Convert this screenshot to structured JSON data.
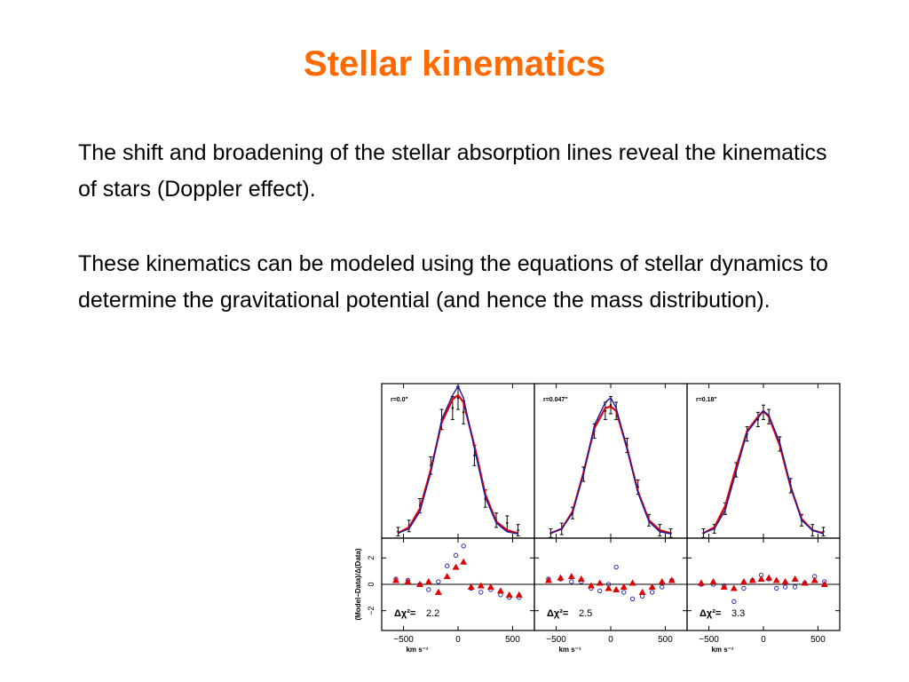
{
  "slide": {
    "title": "Stellar kinematics",
    "title_color": "#ff6a00",
    "paragraphs": [
      "The shift and broadening of the stellar absorption lines reveal the kinematics of stars (Doppler effect).",
      "These kinematics can be modeled using the equations of stellar dynamics to determine the gravitational potential (and hence the mass distribution)."
    ]
  },
  "chart_data": {
    "type": "line",
    "x_ticks": [
      -500,
      0,
      500
    ],
    "x_tick_labels": [
      "−500",
      "0",
      "500"
    ],
    "xlabel": "km s⁻¹",
    "xlim": [
      -700,
      700
    ],
    "residual_ylabel": "(Model−Data)/Δ(Data)",
    "residual_yticks": [
      -2,
      0,
      2
    ],
    "residual_ytick_labels": [
      "−2",
      "0",
      "2"
    ],
    "residual_ylim": [
      -3.5,
      3.5
    ],
    "line_colors": {
      "model_red": "#e00000",
      "model_blue": "#1a1aa8",
      "data": "#000000"
    },
    "panels": [
      {
        "label": "r=0.0\"",
        "chi2_label": "Δχ²=",
        "chi2_value": "2.2",
        "x": [
          -550,
          -450,
          -350,
          -250,
          -150,
          -50,
          0,
          50,
          150,
          250,
          350,
          450,
          550
        ],
        "data": [
          0.02,
          0.06,
          0.2,
          0.48,
          0.8,
          0.88,
          0.95,
          0.85,
          0.55,
          0.25,
          0.1,
          0.08,
          0.03
        ],
        "data_err": [
          0.03,
          0.04,
          0.05,
          0.06,
          0.07,
          0.08,
          0.08,
          0.08,
          0.07,
          0.06,
          0.05,
          0.05,
          0.04
        ],
        "model_red": [
          0.01,
          0.05,
          0.18,
          0.45,
          0.78,
          0.94,
          0.97,
          0.92,
          0.62,
          0.28,
          0.09,
          0.03,
          0.01
        ],
        "model_blue": [
          0.01,
          0.04,
          0.16,
          0.43,
          0.8,
          0.97,
          1.03,
          0.95,
          0.6,
          0.26,
          0.08,
          0.02,
          0.005
        ],
        "res_x": [
          -570,
          -460,
          -350,
          -270,
          -180,
          -100,
          -20,
          50,
          120,
          210,
          300,
          390,
          470,
          560
        ],
        "res_red": [
          0.3,
          0.2,
          0.0,
          0.2,
          -0.6,
          0.6,
          1.3,
          1.7,
          -0.2,
          -0.1,
          -0.2,
          -0.5,
          -0.8,
          -0.8
        ],
        "res_blue": [
          0.4,
          0.3,
          0.0,
          -0.4,
          0.2,
          1.4,
          2.2,
          2.9,
          -0.3,
          -0.6,
          -0.4,
          -0.8,
          -1.0,
          -1.0
        ]
      },
      {
        "label": "r=0.047\"",
        "chi2_label": "Δχ²=",
        "chi2_value": "2.5",
        "x": [
          -550,
          -450,
          -350,
          -250,
          -150,
          -50,
          0,
          50,
          150,
          250,
          350,
          450,
          550
        ],
        "data": [
          0.01,
          0.04,
          0.15,
          0.42,
          0.72,
          0.86,
          0.9,
          0.86,
          0.62,
          0.33,
          0.1,
          0.03,
          0.01
        ],
        "data_err": [
          0.03,
          0.04,
          0.04,
          0.05,
          0.05,
          0.06,
          0.06,
          0.06,
          0.05,
          0.05,
          0.04,
          0.04,
          0.03
        ],
        "model_red": [
          0.01,
          0.04,
          0.16,
          0.43,
          0.74,
          0.88,
          0.89,
          0.86,
          0.6,
          0.3,
          0.1,
          0.03,
          0.01
        ],
        "model_blue": [
          0.01,
          0.04,
          0.15,
          0.42,
          0.76,
          0.92,
          0.95,
          0.88,
          0.6,
          0.29,
          0.09,
          0.02,
          0.005
        ],
        "res_x": [
          -570,
          -460,
          -360,
          -270,
          -180,
          -100,
          -20,
          50,
          120,
          200,
          290,
          380,
          470,
          560
        ],
        "res_red": [
          0.3,
          0.5,
          0.6,
          0.4,
          -0.1,
          0.1,
          -0.3,
          -0.4,
          -0.2,
          0.1,
          -0.6,
          -0.2,
          0.2,
          0.3
        ],
        "res_blue": [
          0.4,
          0.4,
          0.2,
          0.2,
          -0.3,
          -0.5,
          0.0,
          1.3,
          -0.6,
          -1.1,
          -0.9,
          -0.6,
          -0.2,
          0.3
        ]
      },
      {
        "label": "r=0.18\"",
        "chi2_label": "Δχ²=",
        "chi2_value": "3.3",
        "x": [
          -550,
          -450,
          -350,
          -250,
          -150,
          -50,
          0,
          50,
          150,
          250,
          350,
          450,
          550
        ],
        "data": [
          0.01,
          0.04,
          0.18,
          0.45,
          0.7,
          0.8,
          0.85,
          0.82,
          0.63,
          0.34,
          0.1,
          0.03,
          0.02
        ],
        "data_err": [
          0.03,
          0.03,
          0.04,
          0.05,
          0.05,
          0.05,
          0.05,
          0.05,
          0.05,
          0.05,
          0.04,
          0.04,
          0.03
        ],
        "model_red": [
          0.01,
          0.05,
          0.2,
          0.47,
          0.72,
          0.82,
          0.86,
          0.82,
          0.62,
          0.33,
          0.11,
          0.03,
          0.01
        ],
        "model_blue": [
          0.01,
          0.04,
          0.17,
          0.44,
          0.71,
          0.81,
          0.86,
          0.83,
          0.64,
          0.34,
          0.1,
          0.03,
          0.005
        ],
        "res_x": [
          -570,
          -460,
          -360,
          -270,
          -180,
          -100,
          -20,
          50,
          120,
          200,
          290,
          380,
          470,
          560
        ],
        "res_red": [
          0.1,
          0.2,
          -0.2,
          -0.3,
          0.2,
          0.3,
          0.4,
          0.5,
          0.3,
          0.2,
          0.4,
          0.1,
          0.3,
          0.0
        ],
        "res_blue": [
          0.0,
          0.0,
          -0.1,
          -1.3,
          -0.3,
          0.3,
          0.7,
          0.4,
          -0.3,
          -0.2,
          -0.2,
          0.1,
          0.6,
          0.2
        ]
      }
    ]
  }
}
